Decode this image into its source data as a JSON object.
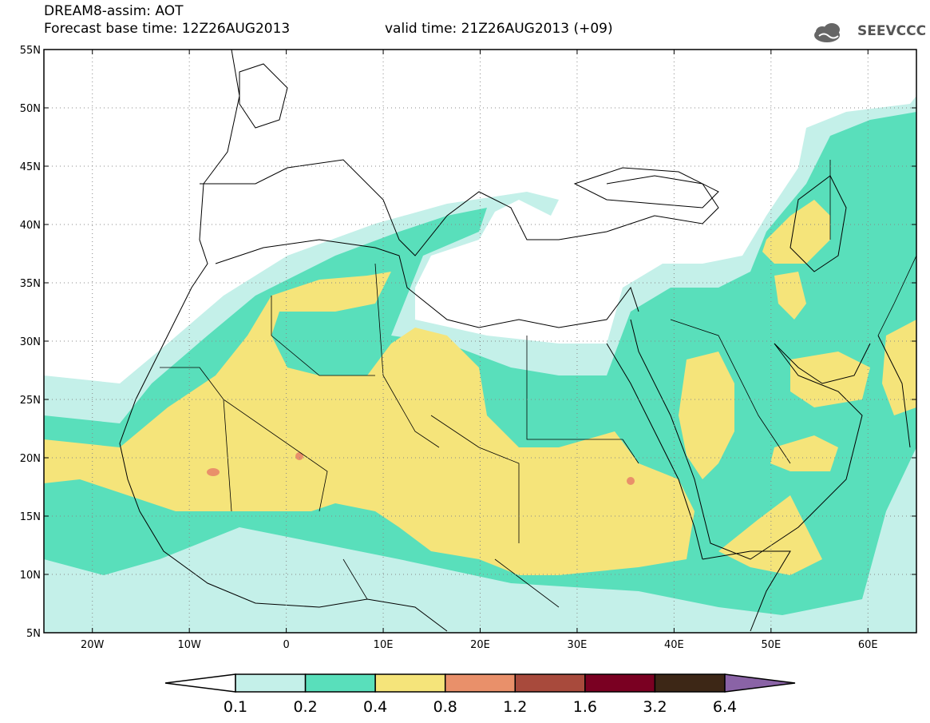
{
  "header": {
    "title": "DREAM8-assim: AOT",
    "base_time": "Forecast base time: 12Z26AUG2013",
    "valid_time": "valid time: 21Z26AUG2013 (+09)",
    "logo_text": "SEEVCCC"
  },
  "map": {
    "lon_range": [
      -25,
      65
    ],
    "lat_range": [
      5,
      55
    ],
    "x_ticks": [
      {
        "lon": -20,
        "label": "20W"
      },
      {
        "lon": -10,
        "label": "10W"
      },
      {
        "lon": 0,
        "label": "0"
      },
      {
        "lon": 10,
        "label": "10E"
      },
      {
        "lon": 20,
        "label": "20E"
      },
      {
        "lon": 30,
        "label": "30E"
      },
      {
        "lon": 40,
        "label": "40E"
      },
      {
        "lon": 50,
        "label": "50E"
      },
      {
        "lon": 60,
        "label": "60E"
      }
    ],
    "y_ticks": [
      {
        "lat": 55,
        "label": "55N"
      },
      {
        "lat": 50,
        "label": "50N"
      },
      {
        "lat": 45,
        "label": "45N"
      },
      {
        "lat": 40,
        "label": "40N"
      },
      {
        "lat": 35,
        "label": "35N"
      },
      {
        "lat": 30,
        "label": "30N"
      },
      {
        "lat": 25,
        "label": "25N"
      },
      {
        "lat": 20,
        "label": "20N"
      },
      {
        "lat": 15,
        "label": "15N"
      },
      {
        "lat": 10,
        "label": "10N"
      },
      {
        "lat": 5,
        "label": "5N"
      }
    ],
    "gridlines": true
  },
  "colorbar": {
    "levels": [
      "0.1",
      "0.2",
      "0.4",
      "0.8",
      "1.2",
      "1.6",
      "3.2",
      "6.4"
    ],
    "colors": [
      "#ffffff",
      "#c4f0e9",
      "#59dfbb",
      "#f5e47a",
      "#e9906a",
      "#a84a3c",
      "#7a0022",
      "#3d2716",
      "#8a63a6"
    ]
  }
}
